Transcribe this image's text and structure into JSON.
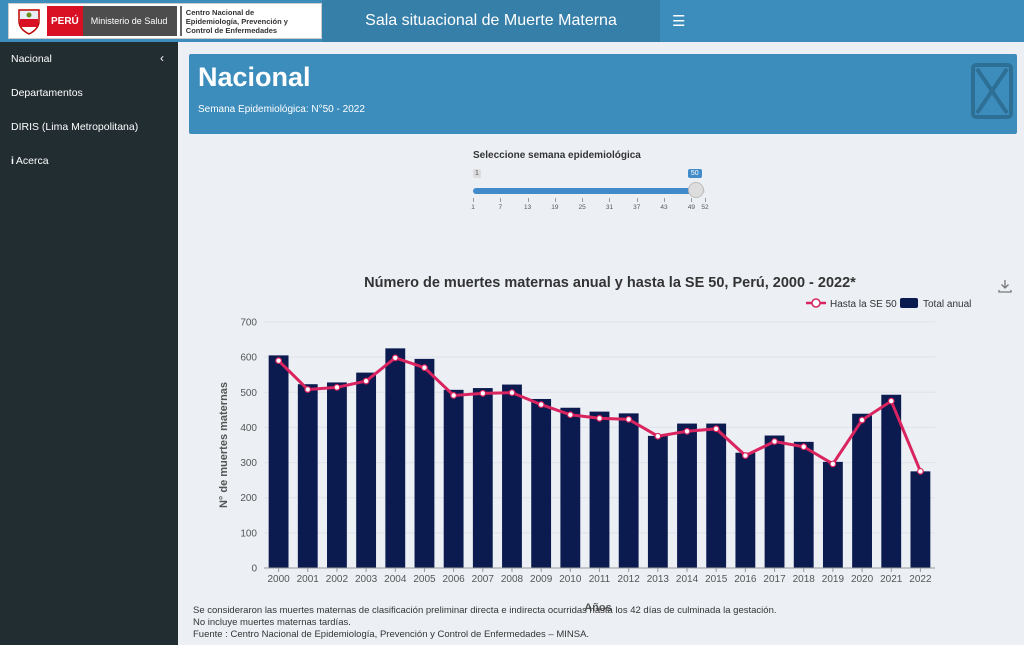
{
  "header": {
    "peru_label": "PERÚ",
    "ministry": "Ministerio de Salud",
    "center_line1": "Centro Nacional de",
    "center_line2": "Epidemiología, Prevención y",
    "center_line3": "Control de Enfermedades",
    "app_title": "Sala situacional de Muerte Materna",
    "menu_icon": "hamburger-icon"
  },
  "sidebar": {
    "items": [
      {
        "label": "Nacional"
      },
      {
        "label": "Departamentos"
      },
      {
        "label": "DIRIS (Lima Metropolitana)"
      },
      {
        "label": "Acerca"
      }
    ]
  },
  "banner": {
    "title": "Nacional",
    "subtitle": "Semana Epidemiológica: N°50 - 2022"
  },
  "slider": {
    "label": "Seleccione semana epidemiológica",
    "min_label": "1",
    "value_label": "50",
    "min": 1,
    "max": 52,
    "value": 50,
    "ticks": [
      "1",
      "7",
      "13",
      "19",
      "25",
      "31",
      "37",
      "43",
      "49",
      "52"
    ]
  },
  "chart_data": {
    "type": "bar",
    "title": "Número de muertes maternas anual y hasta la SE 50, Perú, 2000 - 2022*",
    "xlabel": "Años",
    "ylabel": "N° de muertes maternas",
    "ylim": [
      0,
      700
    ],
    "yticks": [
      "0",
      "100",
      "200",
      "300",
      "400",
      "500",
      "600",
      "700"
    ],
    "legend_position": "top-right",
    "categories": [
      "2000",
      "2001",
      "2002",
      "2003",
      "2004",
      "2005",
      "2006",
      "2007",
      "2008",
      "2009",
      "2010",
      "2011",
      "2012",
      "2013",
      "2014",
      "2015",
      "2016",
      "2017",
      "2018",
      "2019",
      "2020",
      "2021",
      "2022"
    ],
    "series": [
      {
        "name": "Total anual",
        "kind": "bar",
        "color": "#0b1a4f",
        "values": [
          605,
          523,
          528,
          556,
          625,
          595,
          507,
          512,
          522,
          481,
          456,
          445,
          440,
          376,
          411,
          411,
          328,
          377,
          359,
          302,
          439,
          493,
          275
        ]
      },
      {
        "name": "Hasta la SE 50",
        "kind": "line",
        "color": "#d9245f",
        "values": [
          590,
          508,
          514,
          532,
          598,
          570,
          491,
          497,
          499,
          465,
          436,
          426,
          423,
          375,
          389,
          396,
          320,
          360,
          345,
          296,
          421,
          475,
          275
        ]
      }
    ]
  },
  "notes": {
    "line1": "Se consideraron las muertes maternas de clasificación preliminar directa e indirecta ocurridas hasta los 42 días de culminada la gestación.",
    "line2": "No incluye muertes maternas tardías.",
    "line3": "Fuente : Centro Nacional de Epidemiología, Prevención y Control de Enfermedades – MINSA."
  }
}
